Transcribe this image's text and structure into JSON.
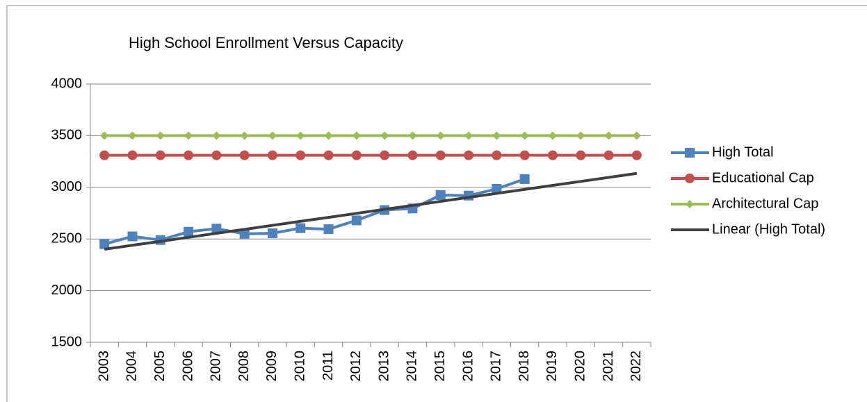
{
  "chart_data": {
    "type": "line",
    "title": "High School Enrollment Versus Capacity",
    "categories": [
      "2003",
      "2004",
      "2005",
      "2006",
      "2007",
      "2008",
      "2009",
      "2010",
      "2011",
      "2012",
      "2013",
      "2014",
      "2015",
      "2016",
      "2017",
      "2018",
      "2019",
      "2020",
      "2021",
      "2022"
    ],
    "ylim": [
      1500,
      4000
    ],
    "yticks": [
      1500,
      2000,
      2500,
      3000,
      3500,
      4000
    ],
    "grid": true,
    "legend": "right",
    "series": [
      {
        "name": "High Total",
        "color": "#4f81bd",
        "marker": "square",
        "values": [
          2450,
          2525,
          2490,
          2570,
          2600,
          2550,
          2555,
          2605,
          2595,
          2680,
          2780,
          2795,
          2925,
          2920,
          2985,
          3080,
          null,
          null,
          null,
          null
        ]
      },
      {
        "name": "Educational Cap",
        "color": "#c0504d",
        "marker": "circle",
        "values": [
          3310,
          3310,
          3310,
          3310,
          3310,
          3310,
          3310,
          3310,
          3310,
          3310,
          3310,
          3310,
          3310,
          3310,
          3310,
          3310,
          3310,
          3310,
          3310,
          3310
        ]
      },
      {
        "name": "Architectural Cap",
        "color": "#9bbb59",
        "marker": "diamond",
        "values": [
          3500,
          3500,
          3500,
          3500,
          3500,
          3500,
          3500,
          3500,
          3500,
          3500,
          3500,
          3500,
          3500,
          3500,
          3500,
          3500,
          3500,
          3500,
          3500,
          3500
        ]
      },
      {
        "name": "Linear (High Total)",
        "color": "#404040",
        "marker": "none",
        "values": [
          2400,
          2439,
          2477,
          2516,
          2555,
          2593,
          2632,
          2671,
          2709,
          2748,
          2787,
          2825,
          2864,
          2903,
          2941,
          2980,
          3019,
          3057,
          3096,
          3135
        ]
      }
    ]
  }
}
